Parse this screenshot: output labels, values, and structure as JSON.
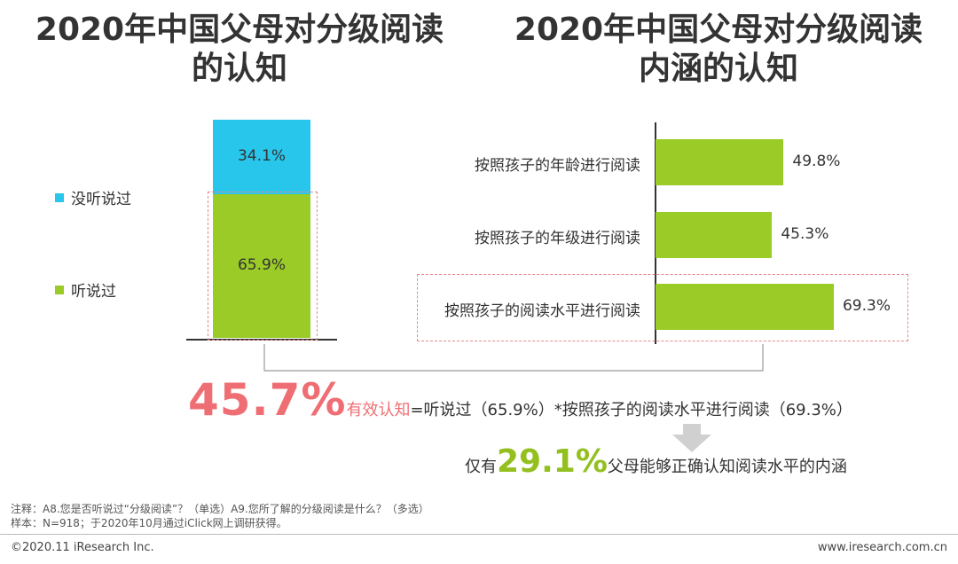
{
  "titles": {
    "left_line1": "2020年中国父母对分级阅读",
    "left_line2": "的认知",
    "right_line1": "2020年中国父母对分级阅读",
    "right_line2": "内涵的认知"
  },
  "colors": {
    "cyan": "#29c6ec",
    "green": "#9acb26",
    "red": "#ee6e73",
    "dash": "#e8878c"
  },
  "chart_data": [
    {
      "type": "bar",
      "stacked": true,
      "categories": [
        ""
      ],
      "series": [
        {
          "name": "听说过",
          "values": [
            65.9
          ],
          "label": "65.9%",
          "color": "#9acb26"
        },
        {
          "name": "没听说过",
          "values": [
            34.1
          ],
          "label": "34.1%",
          "color": "#29c6ec"
        }
      ],
      "ylim": [
        0,
        100
      ],
      "legend": "left"
    },
    {
      "type": "bar",
      "orientation": "horizontal",
      "categories": [
        "按照孩子的年龄进行阅读",
        "按照孩子的年级进行阅读",
        "按照孩子的阅读水平进行阅读"
      ],
      "values": [
        49.8,
        45.3,
        69.3
      ],
      "labels": [
        "49.8%",
        "45.3%",
        "69.3%"
      ],
      "color": "#9acb26",
      "xlim": [
        0,
        100
      ],
      "highlighted_category": "按照孩子的阅读水平进行阅读"
    }
  ],
  "formula": {
    "big_value": "45.7%",
    "red_label": "有效认知",
    "rest": "=听说过（65.9%）*按照孩子的阅读水平进行阅读（69.3%）"
  },
  "conclusion": {
    "prefix": "仅有",
    "big_value": "29.1%",
    "suffix": "父母能够正确认知阅读水平的内涵"
  },
  "notes": {
    "line1": "注释：A8.您是否听说过“分级阅读”？（单选）A9.您所了解的分级阅读是什么？（多选）",
    "line2": "样本：N=918；于2020年10月通过iClick网上调研获得。"
  },
  "footer": {
    "left": "©2020.11 iResearch Inc.",
    "right": "www.iresearch.com.cn"
  }
}
